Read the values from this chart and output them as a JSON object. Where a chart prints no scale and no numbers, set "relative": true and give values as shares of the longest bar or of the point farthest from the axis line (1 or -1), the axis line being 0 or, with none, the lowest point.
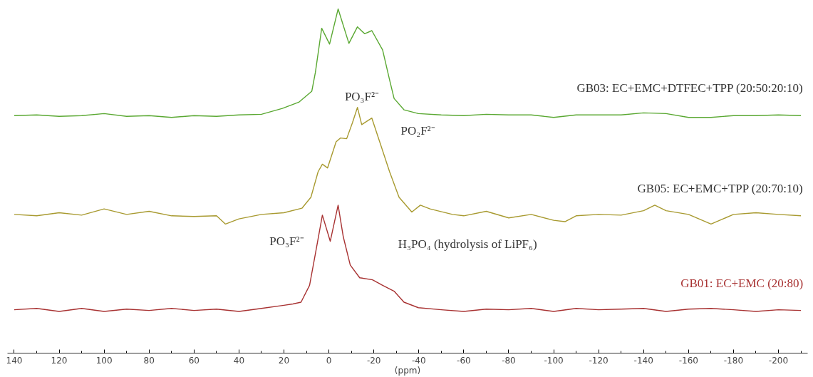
{
  "chart_data": {
    "type": "line",
    "relative": true,
    "xlabel": "(ppm)",
    "xlim": [
      143,
      -213
    ],
    "xticks": [
      140,
      120,
      100,
      80,
      60,
      40,
      20,
      0,
      -20,
      -40,
      -60,
      -80,
      -100,
      -120,
      -140,
      -160,
      -180,
      -200
    ],
    "grid": false,
    "legend": false,
    "marker": "none",
    "line_style": "solid",
    "annotations": [
      "PO₃F²⁻",
      "PO₂F²⁻",
      "PO₃F²⁻",
      "H₃PO₄ (hydrolysis of LiPF₆)"
    ],
    "series": [
      {
        "name": "GB03: EC+EMC+DTFEC+TPP (20:50:20:10)",
        "color": "#5aa832",
        "x": [
          140,
          130,
          120,
          110,
          100,
          90,
          80,
          70,
          60,
          50,
          40,
          30,
          20.7,
          13.4,
          7.6,
          6,
          3.2,
          -0.3,
          -4.1,
          -8.9,
          -12.7,
          -15.9,
          -19.1,
          -23.9,
          -27,
          -29,
          -33.4,
          -39.8,
          -50,
          -60,
          -70,
          -80,
          -90,
          -100,
          -110,
          -120,
          -130,
          -140,
          -150,
          -160,
          -170,
          -180,
          -190,
          -200,
          -210
        ],
        "values": [
          0.69,
          0.692,
          0.688,
          0.69,
          0.696,
          0.688,
          0.69,
          0.685,
          0.69,
          0.688,
          0.692,
          0.694,
          0.711,
          0.729,
          0.761,
          0.816,
          0.944,
          0.898,
          1.0,
          0.9,
          0.948,
          0.928,
          0.937,
          0.881,
          0.794,
          0.74,
          0.707,
          0.696,
          0.692,
          0.69,
          0.694,
          0.692,
          0.692,
          0.685,
          0.692,
          0.692,
          0.692,
          0.698,
          0.696,
          0.685,
          0.685,
          0.69,
          0.69,
          0.692,
          0.69
        ]
      },
      {
        "name": "GB05: EC+EMC+TPP (20:70:10)",
        "color": "#a89a30",
        "x": [
          140,
          130,
          120,
          110,
          100,
          90,
          80,
          70,
          60,
          50,
          46,
          40,
          30,
          20,
          12,
          8,
          4.8,
          2.9,
          0.6,
          -3.2,
          -5.1,
          -7.9,
          -10.5,
          -12.7,
          -14.6,
          -19.1,
          -22.6,
          -27,
          -31.2,
          -36.9,
          -40.7,
          -45,
          -55,
          -60,
          -70,
          -80,
          -90,
          -100,
          -105,
          -110,
          -120,
          -130,
          -140,
          -145,
          -150,
          -160,
          -170,
          -180,
          -190,
          -200,
          -210
        ],
        "values": [
          0.403,
          0.399,
          0.408,
          0.401,
          0.419,
          0.403,
          0.412,
          0.399,
          0.397,
          0.399,
          0.375,
          0.39,
          0.403,
          0.408,
          0.421,
          0.453,
          0.527,
          0.549,
          0.538,
          0.614,
          0.625,
          0.623,
          0.67,
          0.714,
          0.664,
          0.683,
          0.614,
          0.527,
          0.453,
          0.41,
          0.43,
          0.419,
          0.403,
          0.399,
          0.412,
          0.393,
          0.403,
          0.386,
          0.382,
          0.399,
          0.403,
          0.401,
          0.414,
          0.43,
          0.414,
          0.403,
          0.375,
          0.403,
          0.408,
          0.403,
          0.399
        ]
      },
      {
        "name": "GB01: EC+EMC (20:80)",
        "color": "#a83232",
        "x": [
          140,
          130,
          120,
          110,
          100,
          90,
          80,
          70,
          60,
          50,
          40,
          30,
          20,
          16,
          12.4,
          8.6,
          6,
          2.9,
          -0.6,
          -4.1,
          -6.4,
          -9.5,
          -13.7,
          -19.4,
          -23.9,
          -29,
          -33.4,
          -39.8,
          -50,
          -60,
          -70,
          -80,
          -90,
          -100,
          -110,
          -120,
          -130,
          -140,
          -150,
          -160,
          -170,
          -180,
          -190,
          -200,
          -210
        ],
        "values": [
          0.126,
          0.13,
          0.121,
          0.13,
          0.121,
          0.128,
          0.124,
          0.13,
          0.124,
          0.128,
          0.121,
          0.13,
          0.139,
          0.143,
          0.148,
          0.197,
          0.289,
          0.401,
          0.325,
          0.43,
          0.338,
          0.256,
          0.219,
          0.213,
          0.197,
          0.18,
          0.148,
          0.132,
          0.126,
          0.121,
          0.128,
          0.126,
          0.13,
          0.121,
          0.13,
          0.126,
          0.128,
          0.13,
          0.121,
          0.128,
          0.13,
          0.126,
          0.121,
          0.126,
          0.124
        ]
      }
    ]
  }
}
